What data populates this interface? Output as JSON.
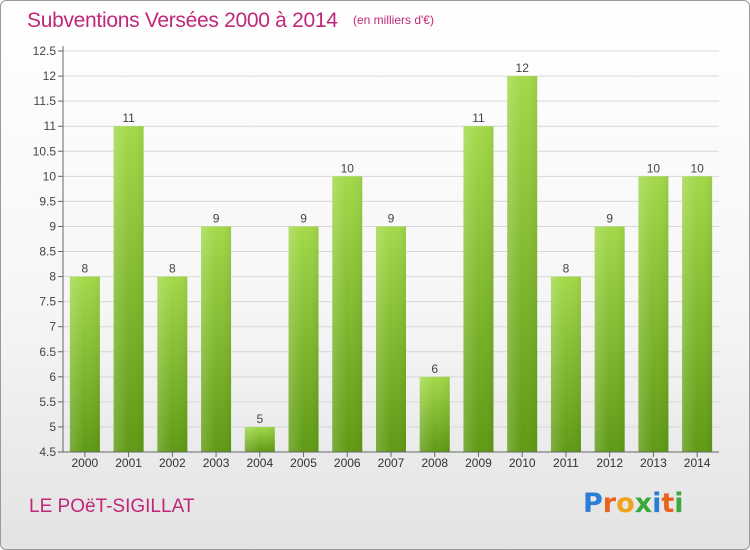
{
  "header": {
    "title": "Subventions Versées 2000 à 2014",
    "subtitle": "(en milliers d'€)"
  },
  "footer": {
    "commune": "LE POëT-SIGILLAT",
    "logo_letters": [
      "P",
      "r",
      "o",
      "x",
      "i",
      "t",
      "i"
    ],
    "logo_colors": [
      "#2a7fd4",
      "#e8641e",
      "#f0a21a",
      "#3aa83a",
      "#2a7fd4",
      "#e8641e",
      "#3aa83a"
    ]
  },
  "colors": {
    "accent": "#c0277a",
    "bar_top": "#a3d94a",
    "bar_bottom": "#5f9a14"
  },
  "chart_data": {
    "type": "bar",
    "categories": [
      "2000",
      "2001",
      "2002",
      "2003",
      "2004",
      "2005",
      "2006",
      "2007",
      "2008",
      "2009",
      "2010",
      "2011",
      "2012",
      "2013",
      "2014"
    ],
    "values": [
      8,
      11,
      8,
      9,
      5,
      9,
      10,
      9,
      6,
      11,
      12,
      8,
      9,
      10,
      10
    ],
    "title": "Subventions Versées 2000 à 2014",
    "xlabel": "",
    "ylabel": "",
    "ylim": [
      4.5,
      12.5
    ],
    "yticks": [
      "4.5",
      "5",
      "5.5",
      "6",
      "6.5",
      "7",
      "7.5",
      "8",
      "8.5",
      "9",
      "9.5",
      "10",
      "10.5",
      "11",
      "11.5",
      "12",
      "12.5"
    ],
    "grid": true,
    "data_labels": true
  }
}
